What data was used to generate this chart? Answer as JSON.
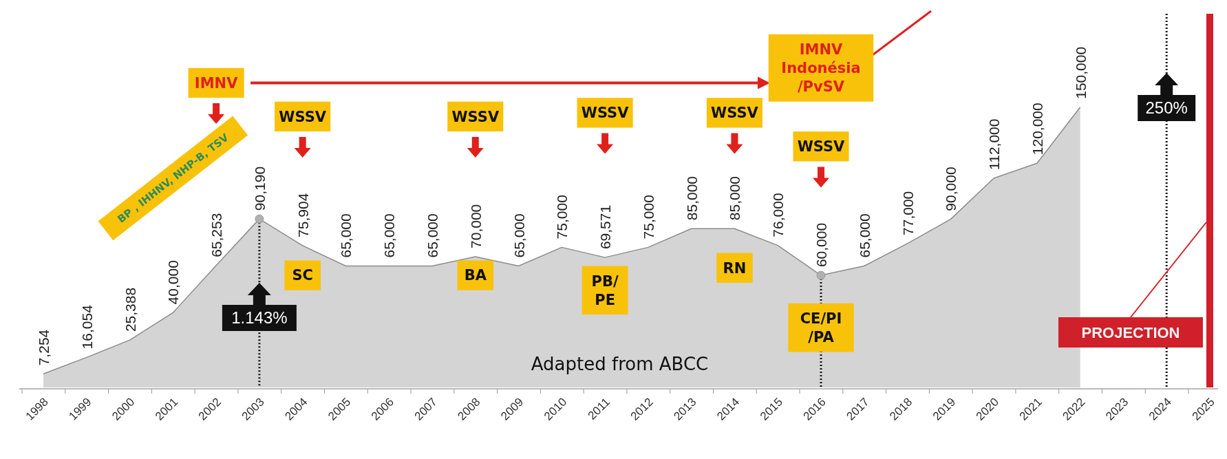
{
  "chart_data": {
    "type": "area",
    "categories": [
      "1998",
      "1999",
      "2000",
      "2001",
      "2002",
      "2003",
      "2004",
      "2005",
      "2006",
      "2007",
      "2008",
      "2009",
      "2010",
      "2011",
      "2012",
      "2013",
      "2014",
      "2015",
      "2016",
      "2017",
      "2018",
      "2019",
      "2020",
      "2021",
      "2022",
      "2023",
      "2024",
      "2025"
    ],
    "series": [
      {
        "color": "#d4d4d4",
        "values": [
          7254,
          16054,
          25388,
          40000,
          65253,
          90190,
          75904,
          65000,
          65000,
          65000,
          70000,
          65000,
          75000,
          69571,
          75000,
          85000,
          85000,
          76000,
          60000,
          65000,
          77000,
          90000,
          112000,
          120000,
          150000,
          null,
          null,
          null
        ],
        "value_labels": [
          "7,254",
          "16,054",
          "25,388",
          "40,000",
          "65,253",
          "90,190",
          "75,904",
          "65,000",
          "65,000",
          "65,000",
          "70,000",
          "65,000",
          "75,000",
          "69,571",
          "75,000",
          "85,000",
          "85,000",
          "76,000",
          "60,000",
          "65,000",
          "77,000",
          "90,000",
          "112,000",
          "120,000",
          "150,000",
          null,
          null,
          null
        ]
      }
    ],
    "tick_labels": "x",
    "ref_lines": [
      {
        "axis": "x",
        "value": "2003",
        "label": "1.143%",
        "color": "#111111",
        "line_style": "dotted"
      },
      {
        "axis": "x",
        "value": "2016",
        "label": null,
        "color": "#111111",
        "line_style": "dotted"
      },
      {
        "axis": "x",
        "value": "2024",
        "label": "250%",
        "color": "#111111",
        "line_style": "dotted"
      },
      {
        "axis": "x",
        "value": "2025",
        "label": "PROJECTION",
        "color": "#d0202a",
        "line_style": "solid"
      }
    ],
    "annotations": [
      "IMNV",
      "BP , IHHNV, NHP-B, TSV",
      "WSSV",
      "WSSV",
      "WSSV",
      "WSSV",
      "IMNV Indonésia /PvSV",
      "WSSV",
      "SC",
      "BA",
      "PB/ PE",
      "RN",
      "CE/PI /PA",
      "Adapted from ABCC"
    ]
  }
}
